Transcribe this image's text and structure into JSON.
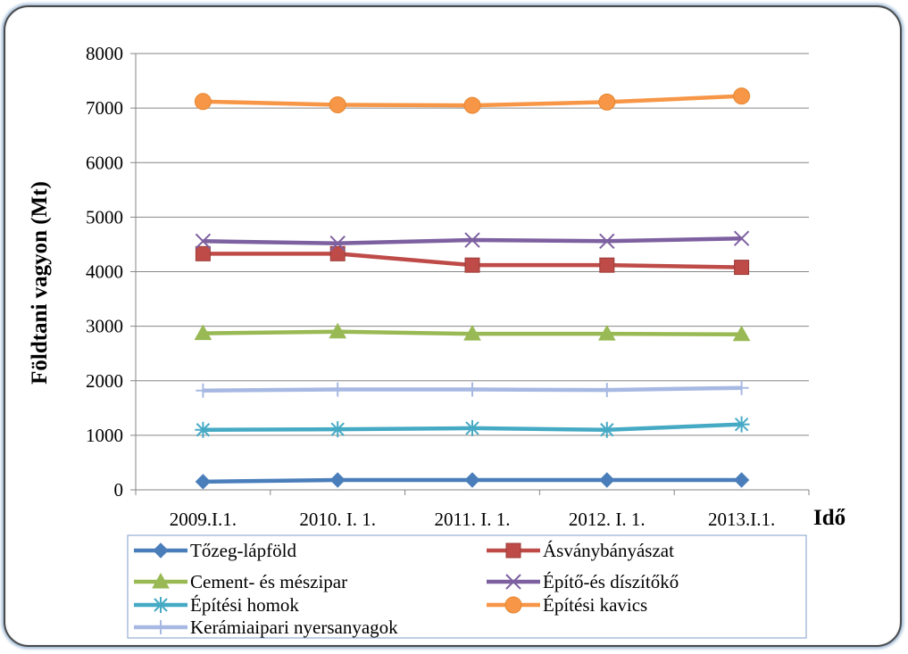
{
  "chart_data": {
    "type": "line",
    "title": "",
    "xlabel": "Idő",
    "ylabel": "Földtani vagyon (Mt)",
    "ylim": [
      0,
      8000
    ],
    "yticks": [
      0,
      1000,
      2000,
      3000,
      4000,
      5000,
      6000,
      7000,
      8000
    ],
    "categories": [
      "2009.I.1.",
      "2010. I. 1.",
      "2011. I. 1.",
      "2012. I. 1.",
      "2013.I.1."
    ],
    "grid": "horizontal",
    "legend_position": "bottom",
    "series": [
      {
        "name": "Tőzeg-lápföld",
        "values": [
          150,
          180,
          180,
          180,
          180
        ],
        "color": "#4a7ebb",
        "marker": "diamond"
      },
      {
        "name": "Ásványbányászat",
        "values": [
          4330,
          4330,
          4120,
          4120,
          4080
        ],
        "color": "#be4b48",
        "marker": "square"
      },
      {
        "name": "Cement- és mészipar",
        "values": [
          2870,
          2900,
          2860,
          2860,
          2850
        ],
        "color": "#98b954",
        "marker": "triangle"
      },
      {
        "name": "Építő-és díszítőkő",
        "values": [
          4560,
          4520,
          4580,
          4560,
          4610
        ],
        "color": "#7d60a0",
        "marker": "x"
      },
      {
        "name": "Építési homok",
        "values": [
          1100,
          1110,
          1130,
          1100,
          1200
        ],
        "color": "#46aac5",
        "marker": "star"
      },
      {
        "name": "Építési kavics",
        "values": [
          7120,
          7060,
          7050,
          7110,
          7220
        ],
        "color": "#f79646",
        "marker": "circle"
      },
      {
        "name": "Kerámiaipari nyersanyagok",
        "values": [
          1820,
          1840,
          1840,
          1830,
          1870
        ],
        "color": "#a7b9e3",
        "marker": "plus"
      }
    ]
  }
}
